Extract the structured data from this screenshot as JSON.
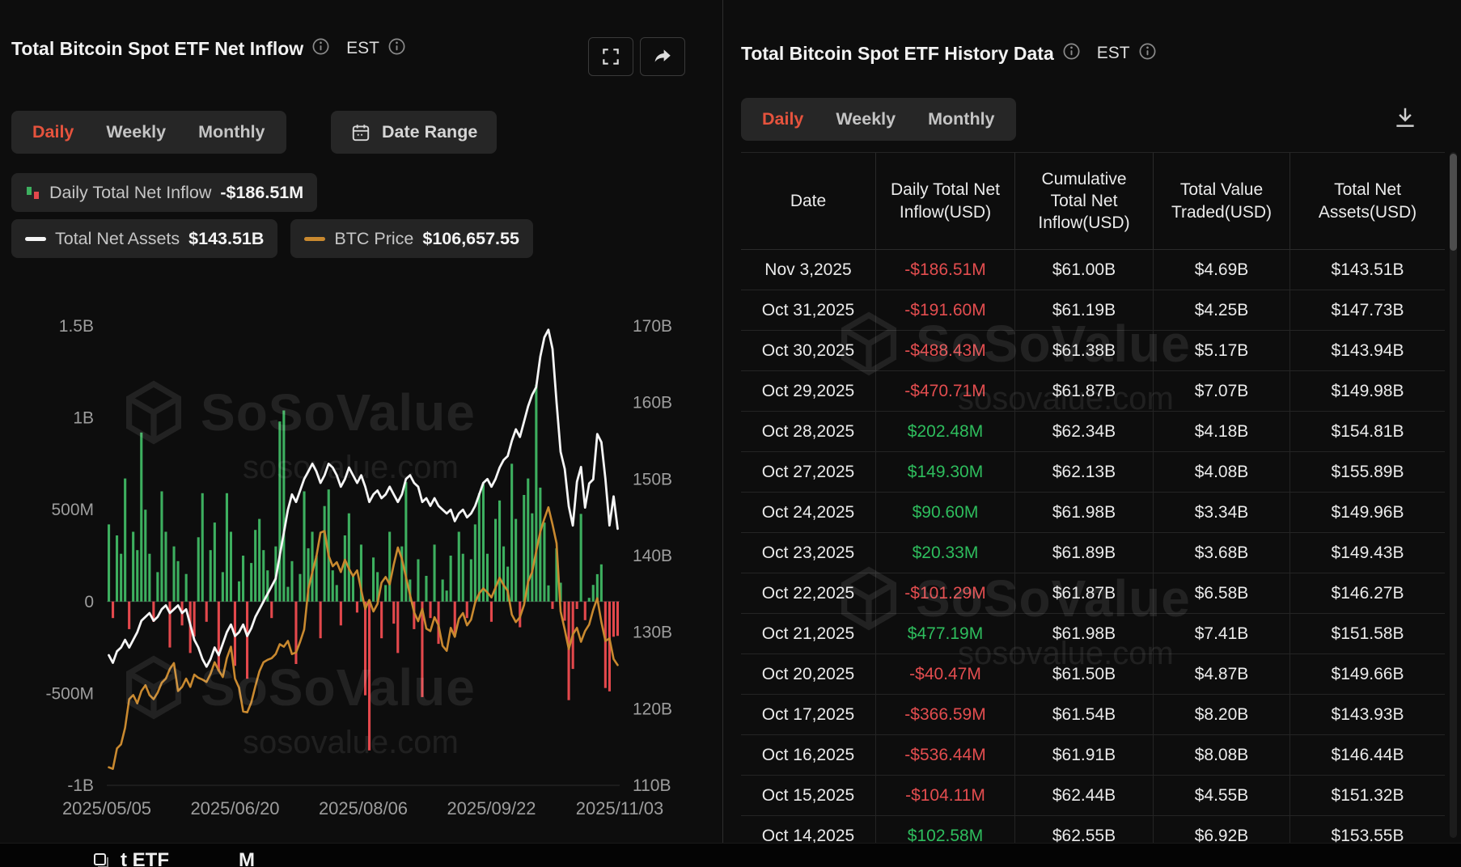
{
  "watermark": {
    "brand": "SoSoValue",
    "domain": "sosovalue.com"
  },
  "colors": {
    "accent": "#e5533d",
    "green": "#2ebd5d",
    "red": "#e34d4f",
    "assets_line": "#f5f5f5",
    "btc_line": "#c9892f",
    "bar_positive": "#3daf5f",
    "bar_negative": "#e3484c"
  },
  "left_panel": {
    "title": "Total Bitcoin Spot ETF Net Inflow",
    "est": "EST",
    "tabs": {
      "daily": "Daily",
      "weekly": "Weekly",
      "monthly": "Monthly"
    },
    "date_range": "Date Range",
    "legend": {
      "inflow_label": "Daily Total Net Inflow",
      "inflow_value": "-$186.51M",
      "assets_label": "Total Net Assets",
      "assets_value": "$143.51B",
      "btc_label": "BTC Price",
      "btc_value": "$106,657.55"
    },
    "chart_data": {
      "type": "bar",
      "title": "Total Bitcoin Spot ETF Net Inflow (Daily)",
      "x_labels": [
        "2025/05/05",
        "2025/06/20",
        "2025/08/06",
        "2025/09/22",
        "2025/11/03"
      ],
      "axes": {
        "bar": {
          "min": -1000,
          "max": 1500,
          "unit": "USD M",
          "ticks": [
            {
              "v": 1500,
              "label": "1.5B"
            },
            {
              "v": 1000,
              "label": "1B"
            },
            {
              "v": 500,
              "label": "500M"
            },
            {
              "v": 0,
              "label": "0"
            },
            {
              "v": -500,
              "label": "-500M"
            },
            {
              "v": -1000,
              "label": "-1B"
            }
          ]
        },
        "assets": {
          "min": 110,
          "max": 170,
          "unit": "USD B",
          "ticks": [
            {
              "v": 170,
              "label": "170B"
            },
            {
              "v": 160,
              "label": "160B"
            },
            {
              "v": 150,
              "label": "150B"
            },
            {
              "v": 140,
              "label": "140B"
            },
            {
              "v": 130,
              "label": "130B"
            },
            {
              "v": 120,
              "label": "120B"
            },
            {
              "v": 110,
              "label": "110B"
            }
          ]
        },
        "btc": {
          "min": 92,
          "max": 148,
          "unit": "USD k",
          "hidden": true
        }
      },
      "bars_label": "Daily Total Net Inflow (USD M, est.)",
      "bars": [
        420,
        -90,
        360,
        260,
        670,
        -150,
        380,
        280,
        920,
        500,
        260,
        -110,
        160,
        600,
        380,
        -250,
        300,
        220,
        -130,
        150,
        -280,
        -190,
        350,
        590,
        -110,
        280,
        430,
        -380,
        160,
        590,
        380,
        -350,
        110,
        250,
        -420,
        210,
        390,
        450,
        280,
        170,
        -90,
        300,
        980,
        1040,
        80,
        220,
        -340,
        150,
        600,
        290,
        380,
        250,
        -200,
        520,
        610,
        170,
        90,
        -130,
        360,
        480,
        140,
        -60,
        310,
        -510,
        -810,
        240,
        160,
        -200,
        90,
        380,
        -120,
        -280,
        300,
        650,
        120,
        -150,
        230,
        -520,
        140,
        -90,
        310,
        -230,
        120,
        60,
        250,
        -190,
        380,
        260,
        -90,
        230,
        420,
        590,
        640,
        260,
        -110,
        450,
        550,
        300,
        190,
        750,
        450,
        -140,
        580,
        670,
        480,
        1180,
        620,
        430,
        88,
        -40,
        290,
        102.58,
        -104.11,
        -536.44,
        -366.59,
        -40.47,
        477.19,
        -101.29,
        20.33,
        90.6,
        149.3,
        202.48,
        -470.71,
        -488.43,
        -191.6,
        -186.51
      ],
      "series": [
        {
          "name": "Total Net Assets (USD B, est.)",
          "axis": "assets",
          "color": "#f5f5f5",
          "values": [
            127,
            126,
            127.5,
            128,
            129,
            128,
            129,
            130,
            131.5,
            132,
            132.5,
            131.5,
            132,
            133,
            133.5,
            132.5,
            133,
            133.5,
            132.5,
            133,
            131,
            129,
            128,
            126.5,
            125.5,
            126.5,
            128,
            127,
            128.5,
            130,
            131,
            129.5,
            130,
            131,
            129.5,
            130.5,
            132,
            133,
            134,
            135,
            136,
            137,
            140,
            143,
            146,
            148,
            147,
            148.5,
            150,
            151,
            152,
            151,
            149.5,
            150.5,
            152,
            151.5,
            150.5,
            149,
            150,
            151.5,
            150.5,
            149.5,
            150.5,
            149,
            147,
            148,
            148.5,
            147.5,
            148,
            149,
            148,
            147,
            148,
            150,
            150.5,
            149.5,
            149,
            147,
            147.5,
            146.5,
            147.5,
            146.5,
            146,
            145.5,
            146,
            144.5,
            145.5,
            146,
            145,
            145.5,
            146.5,
            148,
            149.5,
            150,
            149,
            150,
            151.5,
            152.5,
            153,
            155,
            156.5,
            155.5,
            157.5,
            159.5,
            161,
            162,
            166,
            168.5,
            169.5,
            167,
            160,
            153.55,
            151.32,
            146.44,
            143.93,
            149.66,
            151.58,
            146.27,
            149.43,
            149.96,
            155.89,
            154.81,
            149.98,
            143.94,
            147.73,
            143.51
          ]
        },
        {
          "name": "BTC Price (USD k, est.)",
          "axis": "btc",
          "color": "#c9892f",
          "values": [
            94.2,
            94.0,
            96.5,
            97.0,
            99.0,
            102.5,
            103.0,
            102.0,
            103.5,
            104.2,
            103.0,
            102.5,
            103.3,
            104.5,
            105.0,
            106.2,
            106.9,
            103.5,
            104.0,
            105.0,
            104.0,
            105.5,
            105.1,
            104.9,
            104.6,
            105.6,
            107.0,
            106.0,
            105.2,
            107.5,
            108.9,
            105.0,
            103.9,
            101.0,
            100.9,
            102.1,
            104.1,
            105.9,
            107.0,
            107.3,
            107.5,
            108.0,
            109.2,
            108.9,
            109.6,
            108.0,
            108.2,
            109.5,
            111.0,
            115.9,
            118.0,
            119.9,
            122.8,
            123.0,
            120.0,
            118.7,
            119.2,
            118.0,
            119.5,
            118.4,
            117.5,
            118.2,
            115.8,
            113.5,
            114.6,
            113.2,
            114.1,
            116.7,
            117.4,
            116.5,
            118.9,
            121.0,
            119.6,
            117.4,
            115.2,
            113.1,
            112.0,
            113.5,
            111.1,
            110.8,
            112.5,
            111.5,
            109.0,
            108.4,
            111.2,
            110.1,
            112.3,
            113.0,
            111.5,
            112.2,
            114.3,
            115.4,
            116.0,
            115.5,
            114.9,
            116.1,
            117.3,
            116.4,
            115.7,
            112.8,
            111.9,
            112.5,
            114.0,
            116.8,
            118.0,
            120.5,
            122.9,
            124.5,
            125.9,
            123.8,
            121.5,
            113.2,
            111.0,
            108.6,
            110.4,
            111.2,
            109.5,
            110.8,
            111.6,
            113.4,
            114.8,
            111.9,
            109.6,
            109.9,
            107.4,
            106.66
          ]
        }
      ],
      "legend_position": "top",
      "grid": false
    }
  },
  "right_panel": {
    "title": "Total Bitcoin Spot ETF History Data",
    "est": "EST",
    "tabs": {
      "daily": "Daily",
      "weekly": "Weekly",
      "monthly": "Monthly"
    },
    "table": {
      "columns": [
        "Date",
        "Daily Total Net Inflow(USD)",
        "Cumulative Total Net Inflow(USD)",
        "Total Value Traded(USD)",
        "Total Net Assets(USD)"
      ],
      "rows": [
        [
          "Nov 3,2025",
          "-$186.51M",
          "$61.00B",
          "$4.69B",
          "$143.51B"
        ],
        [
          "Oct 31,2025",
          "-$191.60M",
          "$61.19B",
          "$4.25B",
          "$147.73B"
        ],
        [
          "Oct 30,2025",
          "-$488.43M",
          "$61.38B",
          "$5.17B",
          "$143.94B"
        ],
        [
          "Oct 29,2025",
          "-$470.71M",
          "$61.87B",
          "$7.07B",
          "$149.98B"
        ],
        [
          "Oct 28,2025",
          "$202.48M",
          "$62.34B",
          "$4.18B",
          "$154.81B"
        ],
        [
          "Oct 27,2025",
          "$149.30M",
          "$62.13B",
          "$4.08B",
          "$155.89B"
        ],
        [
          "Oct 24,2025",
          "$90.60M",
          "$61.98B",
          "$3.34B",
          "$149.96B"
        ],
        [
          "Oct 23,2025",
          "$20.33M",
          "$61.89B",
          "$3.68B",
          "$149.43B"
        ],
        [
          "Oct 22,2025",
          "-$101.29M",
          "$61.87B",
          "$6.58B",
          "$146.27B"
        ],
        [
          "Oct 21,2025",
          "$477.19M",
          "$61.98B",
          "$7.41B",
          "$151.58B"
        ],
        [
          "Oct 20,2025",
          "-$40.47M",
          "$61.50B",
          "$4.87B",
          "$149.66B"
        ],
        [
          "Oct 17,2025",
          "-$366.59M",
          "$61.54B",
          "$8.20B",
          "$143.93B"
        ],
        [
          "Oct 16,2025",
          "-$536.44M",
          "$61.91B",
          "$8.08B",
          "$146.44B"
        ],
        [
          "Oct 15,2025",
          "-$104.11M",
          "$62.44B",
          "$4.55B",
          "$151.32B"
        ],
        [
          "Oct 14,2025",
          "$102.58M",
          "$62.55B",
          "$6.92B",
          "$153.55B"
        ]
      ]
    }
  },
  "bottom_strip": {
    "fragment": "t ETF",
    "fragment2": "M"
  }
}
